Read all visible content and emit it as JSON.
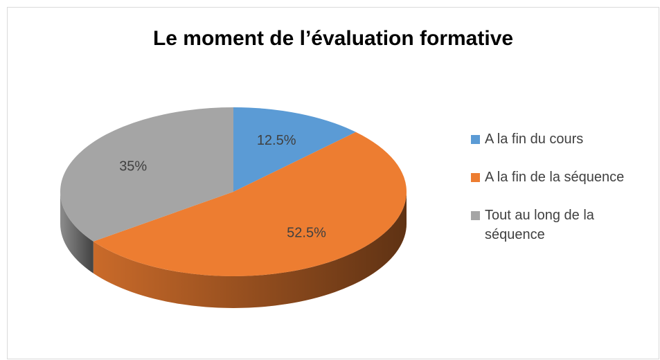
{
  "chart_data": {
    "type": "pie",
    "title": "Le moment de l’évaluation formative",
    "categories": [
      "A la fin du cours",
      "A la fin de la séquence",
      "Tout au long de la séquence"
    ],
    "values": [
      12.5,
      52.5,
      35
    ],
    "value_labels": [
      "12.5%",
      "52.5%",
      "35%"
    ],
    "colors": [
      "#5b9bd5",
      "#ed7d31",
      "#a5a5a5"
    ],
    "legend": "right"
  }
}
